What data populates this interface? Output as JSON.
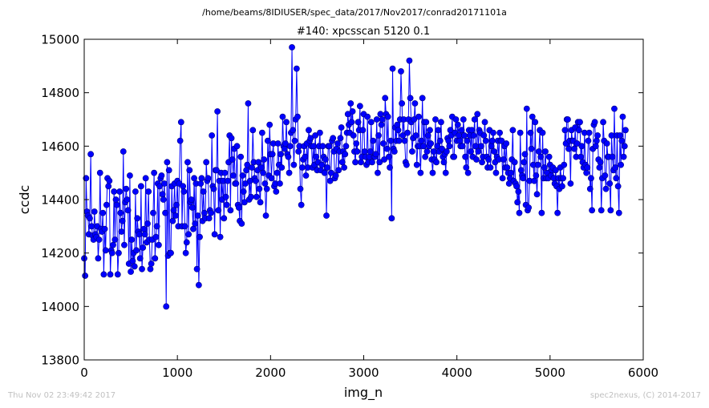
{
  "window": {
    "suptitle": "/home/beams/8IDIUSER/spec_data/2017/Nov2017/conrad20171101a",
    "footer_left": "Thu Nov 02 23:49:42 2017",
    "footer_right": "spec2nexus, (C) 2014-2017"
  },
  "colors": {
    "series": "#0000ff",
    "marker_edge": "#000080",
    "axes": "#000000",
    "footer": "#c0c0c0"
  },
  "chart_data": {
    "type": "line",
    "title": "#140: xpcsscan 5120 0.1",
    "xlabel": "img_n",
    "ylabel": "ccdc",
    "xlim": [
      0,
      6000
    ],
    "ylim": [
      13800,
      15000
    ],
    "xticks": [
      "0",
      "1000",
      "2000",
      "3000",
      "4000",
      "5000",
      "6000"
    ],
    "yticks": [
      "13800",
      "14000",
      "14200",
      "14400",
      "14600",
      "14800",
      "15000"
    ],
    "grid": false,
    "legend": "none",
    "markers": "circle",
    "x_start": 0,
    "x_step": 10,
    "series": [
      {
        "values": [
          14180,
          14115,
          14480,
          14355,
          14340,
          14270,
          14330,
          14570,
          14300,
          14265,
          14250,
          14355,
          14270,
          14260,
          14300,
          14180,
          14250,
          14500,
          14290,
          14280,
          14350,
          14120,
          14290,
          14210,
          14380,
          14480,
          14450,
          14470,
          14120,
          14210,
          14200,
          14230,
          14430,
          14250,
          14400,
          14380,
          14120,
          14200,
          14430,
          14350,
          14280,
          14320,
          14580,
          14230,
          14390,
          14440,
          14400,
          14360,
          14160,
          14490,
          14130,
          14250,
          14170,
          14200,
          14150,
          14430,
          14210,
          14330,
          14280,
          14270,
          14180,
          14450,
          14140,
          14220,
          14290,
          14270,
          14480,
          14240,
          14310,
          14430,
          14250,
          14140,
          14160,
          14250,
          14350,
          14500,
          14180,
          14260,
          14300,
          14460,
          14230,
          14450,
          14480,
          14490,
          14420,
          14400,
          14460,
          14350,
          14000,
          14540,
          14190,
          14510,
          14200,
          14200,
          14450,
          14320,
          14360,
          14460,
          14340,
          14380,
          14470,
          14300,
          14460,
          14620,
          14690,
          14300,
          14450,
          14430,
          14300,
          14200,
          14240,
          14540,
          14270,
          14510,
          14390,
          14400,
          14370,
          14290,
          14480,
          14310,
          14460,
          14140,
          14340,
          14080,
          14260,
          14460,
          14480,
          14320,
          14430,
          14350,
          14330,
          14540,
          14470,
          14480,
          14330,
          14360,
          14350,
          14640,
          14450,
          14440,
          14270,
          14510,
          14510,
          14730,
          14360,
          14470,
          14260,
          14500,
          14400,
          14470,
          14330,
          14500,
          14410,
          14380,
          14470,
          14540,
          14640,
          14360,
          14630,
          14550,
          14490,
          14590,
          14460,
          14460,
          14600,
          14380,
          14370,
          14320,
          14560,
          14310,
          14490,
          14430,
          14390,
          14460,
          14510,
          14530,
          14760,
          14400,
          14470,
          14410,
          14520,
          14660,
          14540,
          14480,
          14470,
          14410,
          14510,
          14540,
          14440,
          14390,
          14520,
          14650,
          14500,
          14550,
          14460,
          14340,
          14440,
          14620,
          14490,
          14680,
          14570,
          14480,
          14570,
          14610,
          14450,
          14460,
          14430,
          14500,
          14610,
          14530,
          14460,
          14570,
          14520,
          14710,
          14600,
          14590,
          14610,
          14690,
          14570,
          14560,
          14500,
          14600,
          14650,
          14970,
          14660,
          14530,
          14620,
          14700,
          14890,
          14710,
          14580,
          14600,
          14440,
          14380,
          14520,
          14550,
          14600,
          14560,
          14490,
          14610,
          14520,
          14660,
          14620,
          14630,
          14600,
          14520,
          14600,
          14530,
          14640,
          14560,
          14510,
          14540,
          14600,
          14650,
          14510,
          14530,
          14600,
          14560,
          14500,
          14550,
          14340,
          14520,
          14600,
          14600,
          14470,
          14500,
          14620,
          14630,
          14580,
          14480,
          14490,
          14590,
          14610,
          14510,
          14580,
          14630,
          14670,
          14540,
          14580,
          14520,
          14570,
          14600,
          14650,
          14720,
          14680,
          14650,
          14760,
          14690,
          14730,
          14640,
          14580,
          14540,
          14610,
          14580,
          14690,
          14660,
          14750,
          14540,
          14560,
          14660,
          14720,
          14580,
          14560,
          14530,
          14710,
          14540,
          14560,
          14580,
          14690,
          14540,
          14620,
          14560,
          14560,
          14570,
          14700,
          14500,
          14640,
          14540,
          14720,
          14680,
          14700,
          14610,
          14550,
          14780,
          14720,
          14590,
          14710,
          14560,
          14520,
          14620,
          14330,
          14890,
          14590,
          14580,
          14670,
          14620,
          14680,
          14660,
          14620,
          14700,
          14880,
          14760,
          14640,
          14700,
          14620,
          14540,
          14530,
          14650,
          14700,
          14920,
          14780,
          14690,
          14580,
          14630,
          14700,
          14760,
          14640,
          14530,
          14600,
          14710,
          14600,
          14500,
          14620,
          14780,
          14600,
          14690,
          14560,
          14690,
          14580,
          14640,
          14600,
          14660,
          14610,
          14550,
          14500,
          14580,
          14550,
          14700,
          14540,
          14600,
          14660,
          14580,
          14620,
          14690,
          14590,
          14560,
          14540,
          14570,
          14500,
          14580,
          14630,
          14620,
          14600,
          14660,
          14640,
          14710,
          14560,
          14560,
          14650,
          14700,
          14620,
          14680,
          14640,
          14620,
          14600,
          14660,
          14600,
          14700,
          14640,
          14560,
          14520,
          14620,
          14500,
          14660,
          14640,
          14580,
          14660,
          14560,
          14640,
          14700,
          14600,
          14550,
          14720,
          14580,
          14660,
          14650,
          14600,
          14540,
          14560,
          14640,
          14690,
          14620,
          14560,
          14520,
          14550,
          14660,
          14520,
          14600,
          14620,
          14650,
          14580,
          14540,
          14500,
          14560,
          14620,
          14550,
          14650,
          14620,
          14620,
          14480,
          14550,
          14600,
          14520,
          14610,
          14520,
          14500,
          14460,
          14480,
          14500,
          14550,
          14660,
          14470,
          14540,
          14460,
          14450,
          14390,
          14430,
          14350,
          14650,
          14510,
          14490,
          14480,
          14540,
          14570,
          14380,
          14740,
          14360,
          14370,
          14470,
          14650,
          14590,
          14710,
          14530,
          14470,
          14690,
          14490,
          14420,
          14530,
          14580,
          14660,
          14560,
          14350,
          14650,
          14480,
          14520,
          14580,
          14480,
          14500,
          14480,
          14560,
          14530,
          14490,
          14510,
          14520,
          14480,
          14460,
          14510,
          14450,
          14350,
          14480,
          14440,
          14520,
          14480,
          14450,
          14480,
          14530,
          14660,
          14610,
          14700,
          14700,
          14590,
          14620,
          14460,
          14660,
          14620,
          14620,
          14590,
          14670,
          14560,
          14610,
          14690,
          14660,
          14690,
          14560,
          14600,
          14540,
          14520,
          14650,
          14530,
          14500,
          14520,
          14620,
          14650,
          14440,
          14480,
          14360,
          14590,
          14680,
          14690,
          14600,
          14620,
          14640,
          14550,
          14520,
          14540,
          14360,
          14480,
          14690,
          14620,
          14490,
          14440,
          14610,
          14560,
          14560,
          14460,
          14360,
          14640,
          14560,
          14510,
          14740,
          14520,
          14480,
          14640,
          14450,
          14350,
          14640,
          14530,
          14620,
          14710,
          14560,
          14600,
          14660
        ]
      }
    ]
  }
}
